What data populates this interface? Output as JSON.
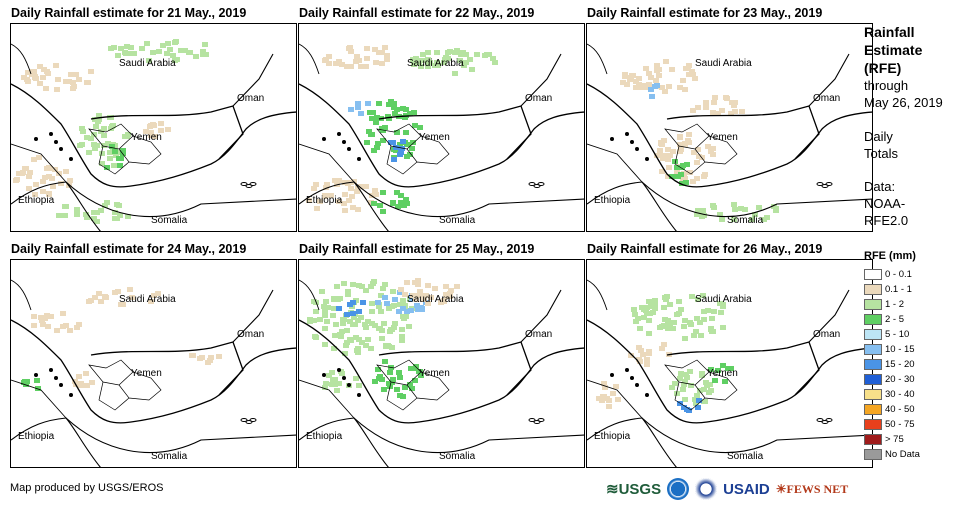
{
  "panels": [
    {
      "title": "Daily Rainfall estimate for 21 May., 2019"
    },
    {
      "title": "Daily Rainfall estimate for 22 May., 2019"
    },
    {
      "title": "Daily Rainfall estimate for 23 May., 2019"
    },
    {
      "title": "Daily Rainfall estimate for 24 May., 2019"
    },
    {
      "title": "Daily Rainfall estimate for 25 May., 2019"
    },
    {
      "title": "Daily Rainfall estimate for 26 May., 2019"
    }
  ],
  "map_labels": {
    "saudi": "Saudi Arabia",
    "oman": "Oman",
    "yemen": "Yemen",
    "ethiopia": "Ethiopia",
    "somalia": "Somalia"
  },
  "sidebar": {
    "title1": "Rainfall",
    "title2": "Estimate",
    "title3": "(RFE)",
    "through": "through",
    "date": "May 26, 2019",
    "daily": "Daily",
    "totals": "Totals",
    "data_label": "Data:",
    "data_src1": "NOAA-",
    "data_src2": "RFE2.0"
  },
  "legend": {
    "title": "RFE (mm)",
    "items": [
      {
        "label": "0 - 0.1",
        "color": "#ffffff"
      },
      {
        "label": "0.1 - 1",
        "color": "#ebd9bc"
      },
      {
        "label": "1 - 2",
        "color": "#b6e3a1"
      },
      {
        "label": "2 - 5",
        "color": "#5fcf63"
      },
      {
        "label": "5 - 10",
        "color": "#bde5f5"
      },
      {
        "label": "10 - 15",
        "color": "#86bff0"
      },
      {
        "label": "15 - 20",
        "color": "#4a94e6"
      },
      {
        "label": "20 - 30",
        "color": "#1f5fd6"
      },
      {
        "label": "30 - 40",
        "color": "#f7e08a"
      },
      {
        "label": "40 - 50",
        "color": "#f5a623"
      },
      {
        "label": "50 - 75",
        "color": "#e8401c"
      },
      {
        "label": "> 75",
        "color": "#a01b1b"
      },
      {
        "label": "No Data",
        "color": "#9a9a9a"
      }
    ]
  },
  "footer": {
    "credit": "Map produced by USGS/EROS",
    "logo_usgs": "USGS",
    "logo_usaid": "USAID",
    "logo_fews": "FEWS NET"
  }
}
